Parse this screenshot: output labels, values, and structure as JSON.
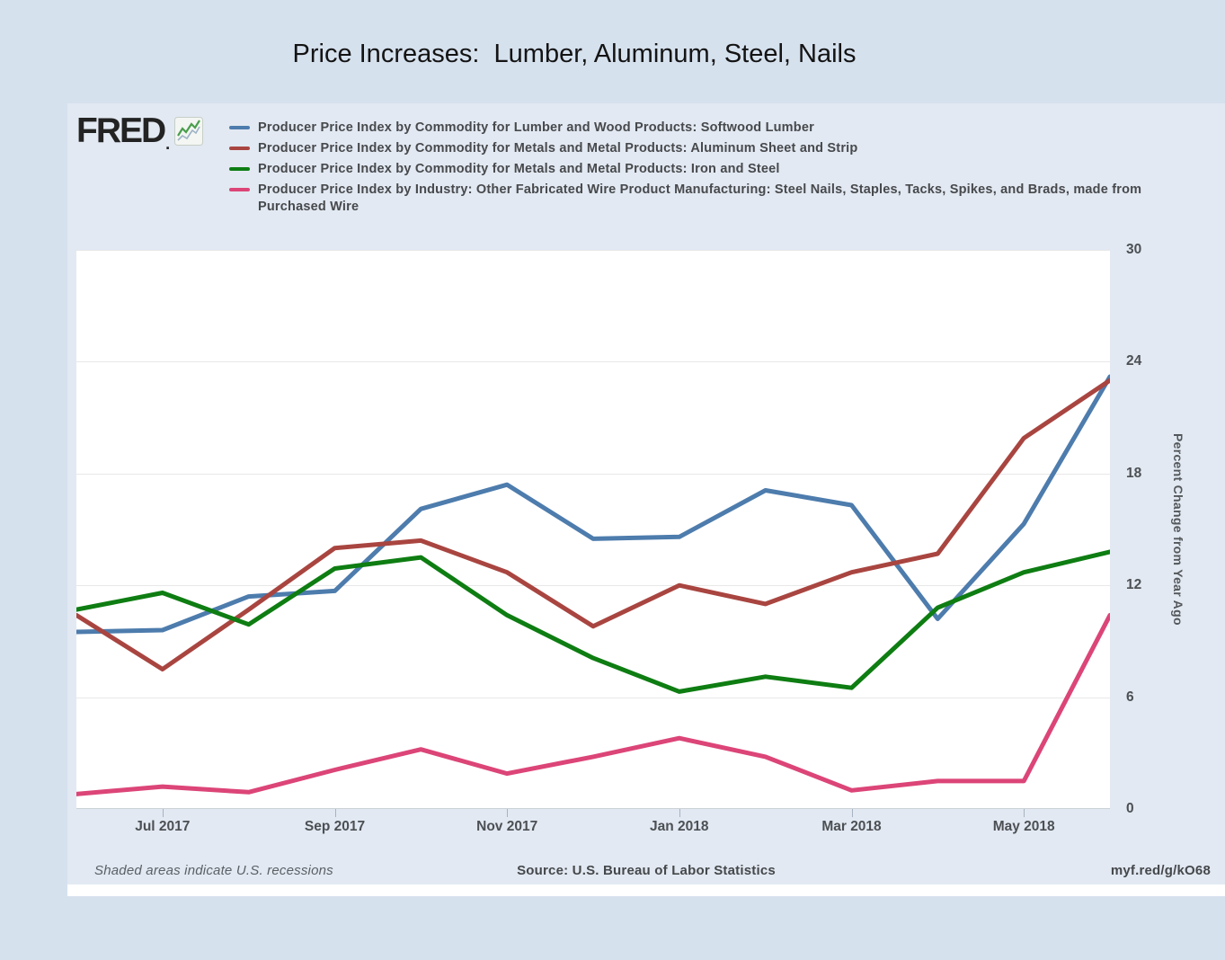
{
  "page": {
    "title": "Price Increases:  Lumber, Aluminum, Steel, Nails"
  },
  "header": {
    "logo": "FRED",
    "logo_mark": "."
  },
  "y_axis": {
    "title": "Percent Change from Year Ago"
  },
  "footer": {
    "note": "Shaded areas indicate U.S. recessions",
    "source": "Source: U.S. Bureau of Labor Statistics",
    "link": "myf.red/g/kO68"
  },
  "chart_data": {
    "type": "line",
    "title": "Price Increases:  Lumber, Aluminum, Steel, Nails",
    "ylabel": "Percent Change from Year Ago",
    "xlabel": "",
    "ylim": [
      0,
      30
    ],
    "yticks": [
      0,
      6,
      12,
      18,
      24,
      30
    ],
    "grid": true,
    "legend_position": "top",
    "categories": [
      "Jun 2017",
      "Jul 2017",
      "Aug 2017",
      "Sep 2017",
      "Oct 2017",
      "Nov 2017",
      "Dec 2017",
      "Jan 2018",
      "Feb 2018",
      "Mar 2018",
      "Apr 2018",
      "May 2018",
      "Jun 2018"
    ],
    "xtick_indices": [
      1,
      3,
      5,
      7,
      9,
      11
    ],
    "xtick_labels": [
      "Jul 2017",
      "Sep 2017",
      "Nov 2017",
      "Jan 2018",
      "Mar 2018",
      "May 2018"
    ],
    "series": [
      {
        "name": "Producer Price Index by Commodity for Lumber and Wood Products: Softwood Lumber",
        "color": "#4d7cad",
        "values": [
          9.5,
          9.6,
          11.4,
          11.7,
          16.1,
          17.4,
          14.5,
          14.6,
          17.1,
          16.3,
          10.2,
          15.3,
          23.2
        ]
      },
      {
        "name": "Producer Price Index by Commodity for Metals and Metal Products: Aluminum Sheet and Strip",
        "color": "#a94540",
        "values": [
          10.4,
          7.5,
          10.7,
          14.0,
          14.4,
          12.7,
          9.8,
          12.0,
          11.0,
          12.7,
          13.7,
          19.9,
          23.0
        ]
      },
      {
        "name": "Producer Price Index by Commodity for Metals and Metal Products: Iron and Steel",
        "color": "#0e7d12",
        "values": [
          10.7,
          11.6,
          9.9,
          12.9,
          13.5,
          10.4,
          8.1,
          6.3,
          7.1,
          6.5,
          10.8,
          12.7,
          13.8
        ]
      },
      {
        "name": "Producer Price Index by Industry: Other Fabricated Wire Product Manufacturing: Steel Nails, Staples, Tacks, Spikes, and Brads, made from Purchased Wire",
        "color": "#dc4577",
        "values": [
          0.8,
          1.2,
          0.9,
          2.1,
          3.2,
          1.9,
          2.8,
          3.8,
          2.8,
          1.0,
          1.5,
          1.5,
          10.4
        ]
      }
    ]
  }
}
